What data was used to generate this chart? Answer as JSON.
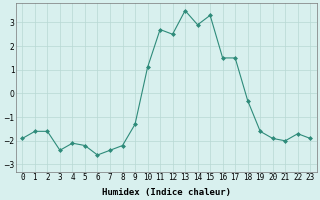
{
  "x": [
    0,
    1,
    2,
    3,
    4,
    5,
    6,
    7,
    8,
    9,
    10,
    11,
    12,
    13,
    14,
    15,
    16,
    17,
    18,
    19,
    20,
    21,
    22,
    23
  ],
  "y": [
    -1.9,
    -1.6,
    -1.6,
    -2.4,
    -2.1,
    -2.2,
    -2.6,
    -2.4,
    -2.2,
    -1.3,
    1.1,
    2.7,
    2.5,
    3.5,
    2.9,
    3.3,
    1.5,
    1.5,
    -0.3,
    -1.6,
    -1.9,
    -2.0,
    -1.7,
    -1.9
  ],
  "line_color": "#2e8b7a",
  "marker": "D",
  "marker_size": 2.0,
  "bg_color": "#d8f0ee",
  "grid_color": "#b8d8d4",
  "xlabel": "Humidex (Indice chaleur)",
  "xlim": [
    -0.5,
    23.5
  ],
  "ylim": [
    -3.3,
    3.8
  ],
  "yticks": [
    -3,
    -2,
    -1,
    0,
    1,
    2,
    3
  ],
  "xtick_labels": [
    "0",
    "1",
    "2",
    "3",
    "4",
    "5",
    "6",
    "7",
    "8",
    "9",
    "10",
    "11",
    "12",
    "13",
    "14",
    "15",
    "16",
    "17",
    "18",
    "19",
    "20",
    "21",
    "22",
    "23"
  ],
  "label_fontsize": 6.5,
  "tick_fontsize": 5.5
}
